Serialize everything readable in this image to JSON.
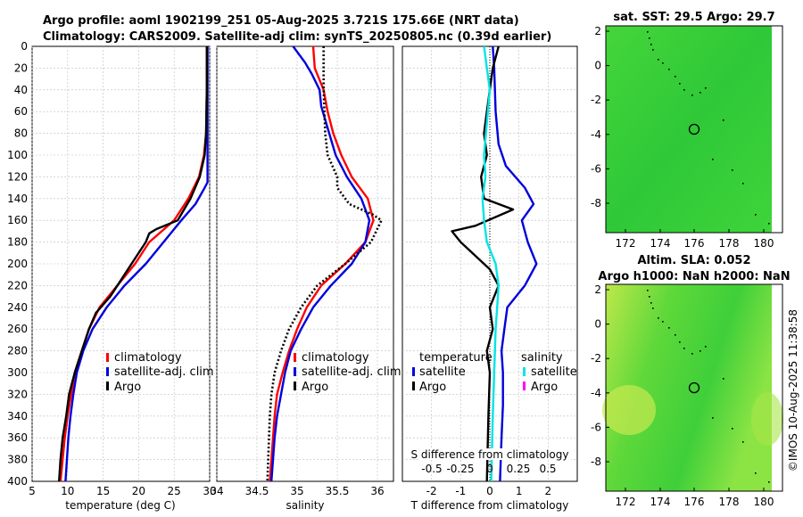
{
  "header": {
    "line1": "Argo profile: aoml 1902199_251 05-Aug-2025 3.721S 175.66E (NRT data)",
    "line2": "Climatology: CARS2009. Satellite-adj clim: synTS_20250805.nc (0.39d earlier)"
  },
  "colors": {
    "climatology": "#ff0000",
    "satellite": "#0000dd",
    "argo": "#000000",
    "salinity_sat": "#00e5e5",
    "salinity_argo": "#ff00ff",
    "map_green": "#33cc33"
  },
  "chart_data": [
    {
      "type": "line",
      "id": "temperature",
      "xlabel": "temperature (deg C)",
      "xlim": [
        5,
        30
      ],
      "xticks": [
        "5",
        "10",
        "15",
        "20",
        "25",
        "30"
      ],
      "ylim": [
        0,
        400
      ],
      "yticks": [
        "0",
        "20",
        "40",
        "60",
        "80",
        "100",
        "120",
        "140",
        "160",
        "180",
        "200",
        "220",
        "240",
        "260",
        "280",
        "300",
        "320",
        "340",
        "360",
        "380",
        "400"
      ],
      "legend": [
        "climatology",
        "satellite-adj. clim",
        "Argo"
      ],
      "series": [
        {
          "name": "climatology",
          "color": "#ff0000",
          "points": [
            [
              29.6,
              0
            ],
            [
              29.6,
              40
            ],
            [
              29.5,
              80
            ],
            [
              29.2,
              100
            ],
            [
              28.5,
              120
            ],
            [
              27,
              140
            ],
            [
              25,
              160
            ],
            [
              21.5,
              180
            ],
            [
              19.5,
              200
            ],
            [
              17,
              220
            ],
            [
              14.5,
              240
            ],
            [
              13,
              260
            ],
            [
              12,
              280
            ],
            [
              11,
              300
            ],
            [
              10.5,
              320
            ],
            [
              10,
              340
            ],
            [
              9.6,
              360
            ],
            [
              9.3,
              380
            ],
            [
              9,
              400
            ]
          ]
        },
        {
          "name": "satellite-adj. clim",
          "color": "#0000dd",
          "points": [
            [
              29.7,
              0
            ],
            [
              29.7,
              40
            ],
            [
              29.7,
              80
            ],
            [
              29.7,
              100
            ],
            [
              29.7,
              125
            ],
            [
              29.3,
              130
            ],
            [
              28,
              145
            ],
            [
              26,
              160
            ],
            [
              23.5,
              180
            ],
            [
              21,
              200
            ],
            [
              18,
              220
            ],
            [
              15.5,
              240
            ],
            [
              13.5,
              260
            ],
            [
              12.2,
              280
            ],
            [
              11.3,
              300
            ],
            [
              10.8,
              320
            ],
            [
              10.4,
              340
            ],
            [
              10.1,
              360
            ],
            [
              9.9,
              380
            ],
            [
              9.7,
              400
            ]
          ]
        },
        {
          "name": "Argo",
          "color": "#000000",
          "points": [
            [
              29.6,
              0
            ],
            [
              29.6,
              40
            ],
            [
              29.5,
              80
            ],
            [
              29.3,
              100
            ],
            [
              28.6,
              120
            ],
            [
              27.3,
              140
            ],
            [
              25.5,
              160
            ],
            [
              22.5,
              168
            ],
            [
              21.5,
              172
            ],
            [
              21,
              180
            ],
            [
              19.5,
              195
            ],
            [
              18,
              210
            ],
            [
              16,
              230
            ],
            [
              14,
              245
            ],
            [
              13,
              260
            ],
            [
              12,
              280
            ],
            [
              11,
              300
            ],
            [
              10.2,
              320
            ],
            [
              9.8,
              340
            ],
            [
              9.3,
              360
            ],
            [
              9,
              380
            ],
            [
              8.8,
              400
            ]
          ]
        }
      ]
    },
    {
      "type": "line",
      "id": "salinity",
      "xlabel": "salinity",
      "xlim": [
        34,
        36.2
      ],
      "xticks": [
        "34",
        "34.5",
        "35",
        "35.5",
        "36"
      ],
      "ylim": [
        0,
        400
      ],
      "legend": [
        "climatology",
        "satellite-adj. clim",
        "Argo"
      ],
      "series": [
        {
          "name": "climatology",
          "color": "#ff0000",
          "points": [
            [
              35.2,
              0
            ],
            [
              35.22,
              20
            ],
            [
              35.33,
              40
            ],
            [
              35.38,
              60
            ],
            [
              35.45,
              80
            ],
            [
              35.55,
              100
            ],
            [
              35.68,
              120
            ],
            [
              35.88,
              140
            ],
            [
              35.95,
              160
            ],
            [
              35.85,
              180
            ],
            [
              35.6,
              200
            ],
            [
              35.3,
              220
            ],
            [
              35.12,
              240
            ],
            [
              35.0,
              260
            ],
            [
              34.9,
              280
            ],
            [
              34.82,
              300
            ],
            [
              34.75,
              320
            ],
            [
              34.72,
              340
            ],
            [
              34.7,
              360
            ],
            [
              34.68,
              380
            ],
            [
              34.66,
              400
            ]
          ]
        },
        {
          "name": "satellite-adj. clim",
          "color": "#0000dd",
          "points": [
            [
              34.95,
              0
            ],
            [
              35.1,
              15
            ],
            [
              35.18,
              25
            ],
            [
              35.28,
              40
            ],
            [
              35.3,
              55
            ],
            [
              35.4,
              80
            ],
            [
              35.48,
              100
            ],
            [
              35.62,
              120
            ],
            [
              35.8,
              140
            ],
            [
              35.9,
              160
            ],
            [
              35.85,
              180
            ],
            [
              35.68,
              200
            ],
            [
              35.42,
              220
            ],
            [
              35.2,
              240
            ],
            [
              35.05,
              260
            ],
            [
              34.92,
              280
            ],
            [
              34.85,
              300
            ],
            [
              34.8,
              320
            ],
            [
              34.75,
              340
            ],
            [
              34.72,
              360
            ],
            [
              34.7,
              380
            ],
            [
              34.68,
              400
            ]
          ]
        },
        {
          "name": "Argo",
          "color": "#000000",
          "dotted": true,
          "points": [
            [
              35.33,
              0
            ],
            [
              35.33,
              40
            ],
            [
              35.35,
              80
            ],
            [
              35.38,
              100
            ],
            [
              35.5,
              120
            ],
            [
              35.5,
              130
            ],
            [
              35.65,
              145
            ],
            [
              35.95,
              155
            ],
            [
              36.05,
              160
            ],
            [
              35.92,
              180
            ],
            [
              35.6,
              200
            ],
            [
              35.25,
              220
            ],
            [
              35.05,
              240
            ],
            [
              34.9,
              260
            ],
            [
              34.8,
              280
            ],
            [
              34.72,
              300
            ],
            [
              34.68,
              320
            ],
            [
              34.66,
              340
            ],
            [
              34.65,
              360
            ],
            [
              34.64,
              380
            ],
            [
              34.63,
              400
            ]
          ]
        }
      ]
    },
    {
      "type": "line",
      "id": "difference",
      "xlabel": "T difference from climatology",
      "xlim": [
        -3,
        3
      ],
      "xticks": [
        "-2",
        "-1",
        "0",
        "1",
        "2"
      ],
      "top_xlabel": "S difference from climatology",
      "top_xticks": [
        "-0.5",
        "-0.25",
        "0",
        "0.25",
        "0.5"
      ],
      "ylim": [
        0,
        400
      ],
      "legend_left_title": "temperature",
      "legend_right_title": "salinity",
      "legend_left": [
        "satellite",
        "Argo"
      ],
      "legend_right": [
        "satellite",
        "Argo"
      ],
      "series": [
        {
          "name": "T satellite",
          "color": "#0000dd",
          "points": [
            [
              0.1,
              0
            ],
            [
              0.15,
              20
            ],
            [
              0.2,
              60
            ],
            [
              0.3,
              90
            ],
            [
              0.55,
              110
            ],
            [
              1.2,
              130
            ],
            [
              1.5,
              145
            ],
            [
              1.1,
              160
            ],
            [
              1.3,
              180
            ],
            [
              1.6,
              200
            ],
            [
              1.2,
              220
            ],
            [
              0.6,
              240
            ],
            [
              0.5,
              260
            ],
            [
              0.4,
              280
            ],
            [
              0.45,
              300
            ],
            [
              0.45,
              330
            ],
            [
              0.4,
              360
            ],
            [
              0.35,
              400
            ]
          ]
        },
        {
          "name": "T Argo",
          "color": "#000000",
          "points": [
            [
              0.3,
              0
            ],
            [
              0.1,
              20
            ],
            [
              0.0,
              40
            ],
            [
              -0.1,
              60
            ],
            [
              -0.2,
              80
            ],
            [
              -0.1,
              100
            ],
            [
              -0.3,
              120
            ],
            [
              -0.2,
              140
            ],
            [
              0.8,
              150
            ],
            [
              -0.5,
              165
            ],
            [
              -1.3,
              170
            ],
            [
              -1.0,
              180
            ],
            [
              -0.4,
              195
            ],
            [
              0.0,
              205
            ],
            [
              0.3,
              220
            ],
            [
              0.0,
              240
            ],
            [
              0.1,
              260
            ],
            [
              -0.1,
              280
            ],
            [
              0.0,
              300
            ],
            [
              -0.05,
              340
            ],
            [
              -0.1,
              400
            ]
          ]
        },
        {
          "name": "S satellite",
          "color": "#00e5e5",
          "points": [
            [
              -0.2,
              0
            ],
            [
              -0.1,
              20
            ],
            [
              0.0,
              40
            ],
            [
              -0.1,
              70
            ],
            [
              -0.2,
              100
            ],
            [
              -0.15,
              120
            ],
            [
              -0.25,
              140
            ],
            [
              -0.2,
              160
            ],
            [
              -0.1,
              180
            ],
            [
              0.2,
              200
            ],
            [
              0.3,
              220
            ],
            [
              0.25,
              240
            ],
            [
              0.2,
              260
            ],
            [
              0.15,
              300
            ],
            [
              0.1,
              340
            ],
            [
              0.05,
              400
            ]
          ]
        }
      ]
    },
    {
      "type": "heatmap",
      "id": "sst_map",
      "title": "sat. SST: 29.5 Argo: 29.7",
      "xticks": [
        "172",
        "174",
        "176",
        "178",
        "180"
      ],
      "yticks": [
        "2",
        "0",
        "-2",
        "-4",
        "-6",
        "-8"
      ],
      "marker": {
        "lon": 175.66,
        "lat": -3.721
      }
    },
    {
      "type": "heatmap",
      "id": "sla_map",
      "title": "Altim. SLA: 0.052",
      "subtitle": "Argo h1000: NaN h2000: NaN",
      "xticks": [
        "172",
        "174",
        "176",
        "178",
        "180"
      ],
      "yticks": [
        "2",
        "0",
        "-2",
        "-4",
        "-6",
        "-8"
      ],
      "marker": {
        "lon": 175.66,
        "lat": -3.721
      }
    }
  ],
  "footer": {
    "stamp": "©IMOS 10-Aug-2025 11:38:58"
  }
}
